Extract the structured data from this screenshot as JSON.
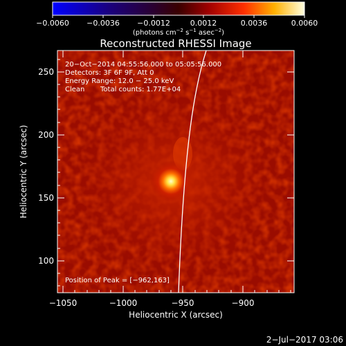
{
  "colorbar": {
    "ticks": [
      "−0.0060",
      "−0.0036",
      "−0.0012",
      "0.0012",
      "0.0036",
      "0.0060"
    ],
    "unit_prefix": "(photons cm",
    "unit_exp1": "−2",
    "unit_mid": " s",
    "unit_exp2": "−1",
    "unit_mid2": " asec",
    "unit_exp3": "−2",
    "unit_suffix": ")"
  },
  "title": "Reconstructed RHESSI Image",
  "info": {
    "time_range": "20−Oct−2014 04:55:56.000 to 05:05:56.000",
    "detectors": "Detectors: 3F 6F 9F, Att 0",
    "energy": "Energy Range: 12.0 − 25.0 keV",
    "method": "Clean",
    "counts": "Total counts: 1.77E+04",
    "peak": "Position of Peak = [−962,163]"
  },
  "axes": {
    "xlabel": "Heliocentric X (arcsec)",
    "ylabel": "Heliocentric Y (arcsec)",
    "xticks": [
      "−1050",
      "−1000",
      "−950",
      "−900"
    ],
    "yticks": [
      "250",
      "200",
      "150",
      "100"
    ]
  },
  "footer_date": "2−Jul−2017 03:06",
  "colors": {
    "limb": "#ffffff",
    "axis": "#ffffff",
    "background": "#000000"
  }
}
